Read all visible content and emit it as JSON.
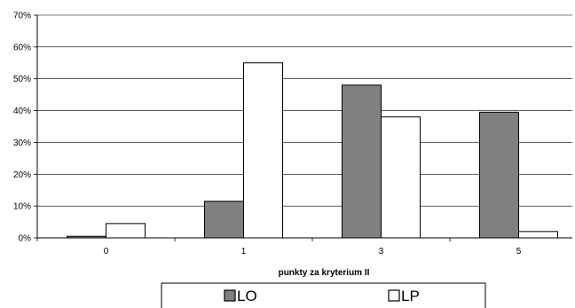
{
  "chart_data": {
    "type": "bar",
    "title": "",
    "xlabel": "punkty za kryterium II",
    "ylabel": "",
    "categories": [
      "0",
      "1",
      "3",
      "5"
    ],
    "series": [
      {
        "name": "LO",
        "values": [
          0.5,
          11.5,
          48,
          39.5
        ],
        "color": "#808080"
      },
      {
        "name": "LP",
        "values": [
          4.5,
          55,
          38,
          2
        ],
        "color": "#ffffff"
      }
    ],
    "ylim": [
      0,
      70
    ],
    "yticks": [
      0,
      10,
      20,
      30,
      40,
      50,
      60,
      70
    ],
    "ytick_suffix": "%",
    "grid": "horizontal",
    "legend_position": "bottom"
  }
}
